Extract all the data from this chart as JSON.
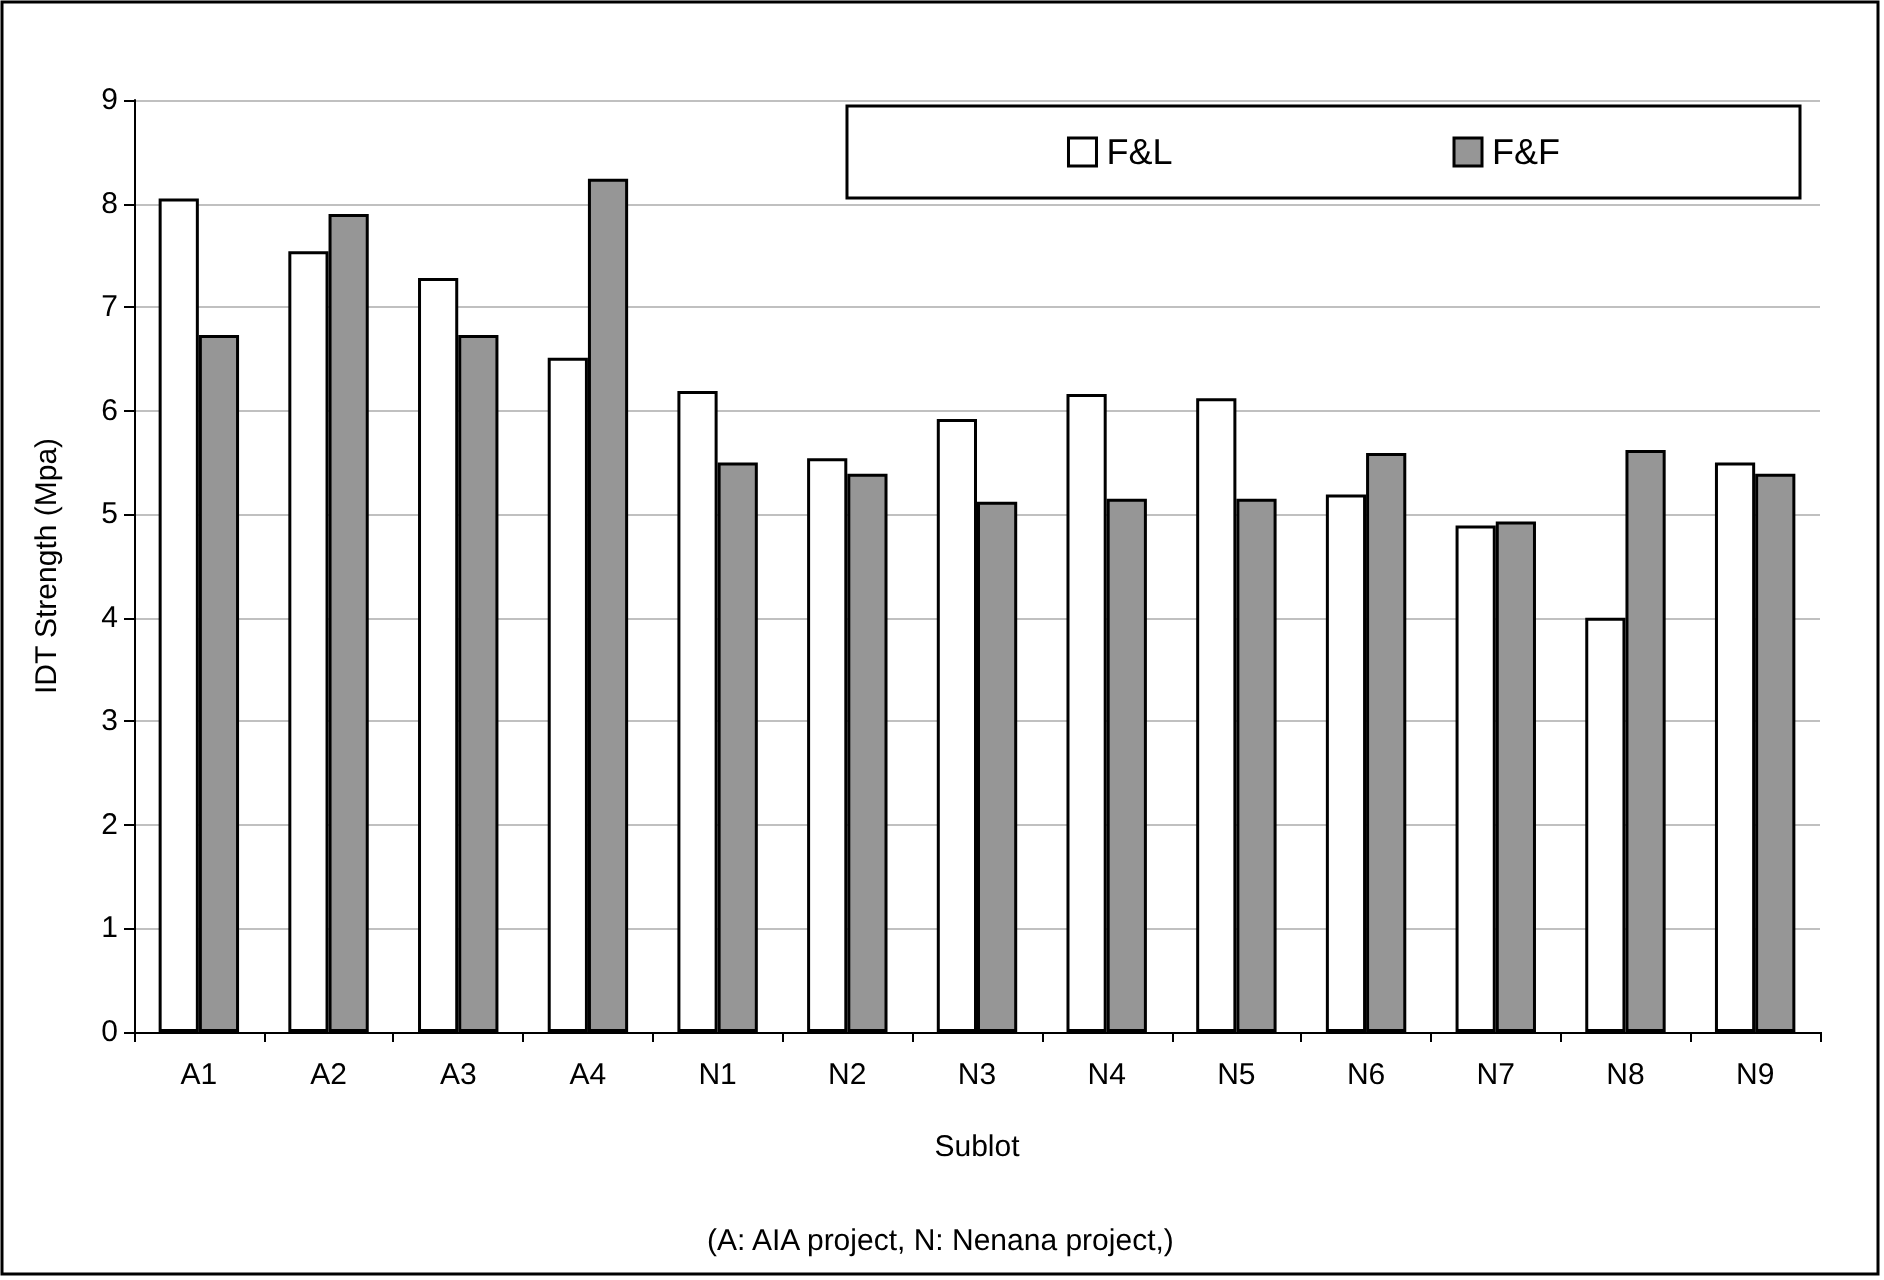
{
  "chart_data": {
    "type": "bar",
    "xlabel": "Sublot",
    "ylabel": "IDT Strength (Mpa)",
    "annotations": [
      "(A: AIA project, N: Nenana project,)"
    ],
    "categories": [
      "A1",
      "A2",
      "A3",
      "A4",
      "N1",
      "N2",
      "N3",
      "N4",
      "N5",
      "N6",
      "N7",
      "N8",
      "N9"
    ],
    "series": [
      {
        "name": "F&L",
        "color": "#ffffff",
        "values": [
          8.05,
          7.54,
          7.28,
          6.51,
          6.19,
          5.54,
          5.92,
          6.16,
          6.12,
          5.19,
          4.89,
          4.0,
          5.5
        ]
      },
      {
        "name": "F&F",
        "color": "#969696",
        "values": [
          6.73,
          7.9,
          6.73,
          8.24,
          5.5,
          5.39,
          5.12,
          5.15,
          5.15,
          5.59,
          4.93,
          5.62,
          5.39
        ]
      }
    ],
    "ylim": [
      0,
      9
    ],
    "yticks": [
      0,
      1,
      2,
      3,
      4,
      5,
      6,
      7,
      8,
      9
    ],
    "grid": "y",
    "legend": "top right"
  }
}
